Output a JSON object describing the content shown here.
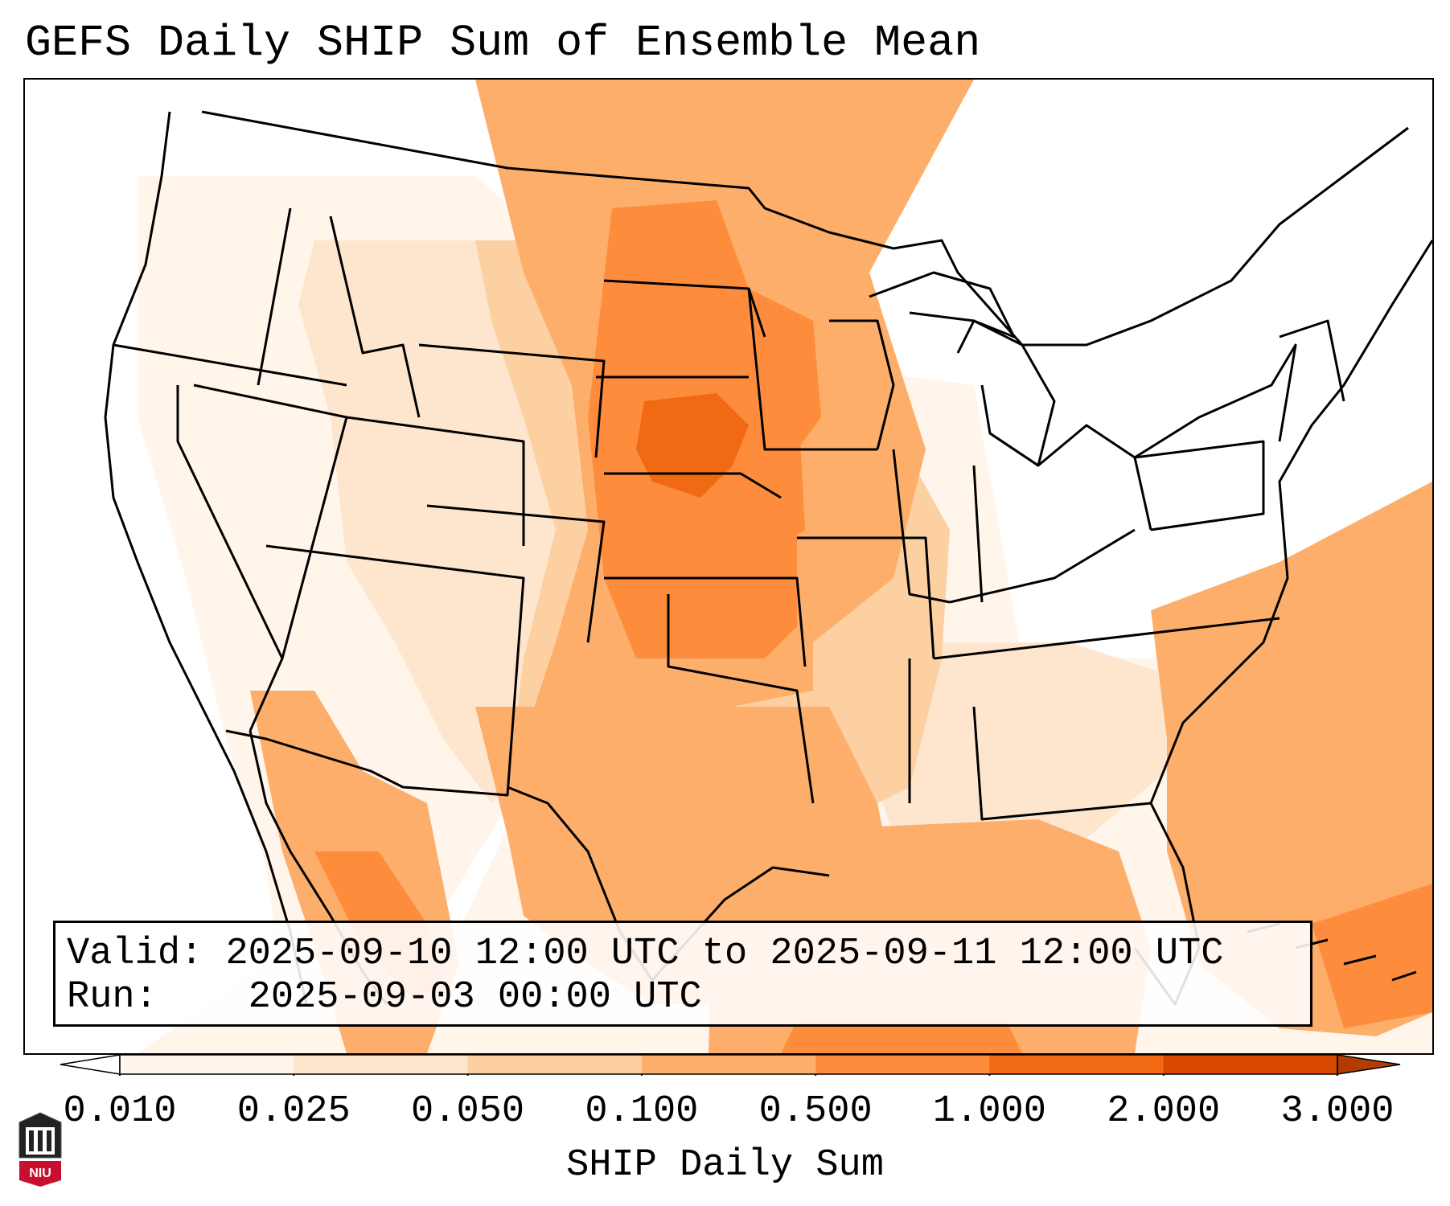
{
  "title": "GEFS Daily SHIP Sum of Ensemble Mean",
  "info": {
    "valid_label": "Valid:",
    "valid_value": "2025-09-10 12:00 UTC to 2025-09-11 12:00 UTC",
    "run_label": "Run:",
    "run_value": "2025-09-03 00:00 UTC"
  },
  "colorbar": {
    "label": "SHIP Daily Sum",
    "ticks": [
      "0.010",
      "0.025",
      "0.050",
      "0.100",
      "0.500",
      "1.000",
      "2.000",
      "3.000"
    ],
    "colors": [
      "#fff5eb",
      "#fee6ce",
      "#fdd0a2",
      "#fdae6b",
      "#fd8d3c",
      "#f16913",
      "#d94801"
    ],
    "extend": "both"
  },
  "logo": {
    "text": "NIU",
    "color": "#c8102e"
  },
  "map": {
    "region": "Contiguous United States",
    "colors": {
      "land_line": "#000000",
      "very_low": "#fff5eb",
      "low": "#fee6ce",
      "mid_low": "#fdd0a2",
      "mid": "#fdae6b",
      "high": "#fd8d3c",
      "very_high": "#f16913"
    }
  }
}
